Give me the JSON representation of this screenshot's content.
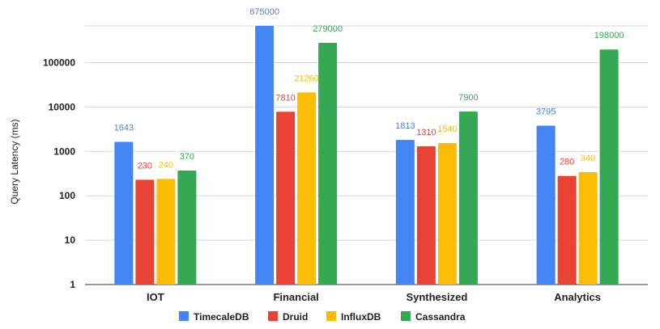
{
  "chart_data": {
    "type": "bar",
    "yscale": "log",
    "ylabel": "Query Latency (ms)",
    "xlabel": "",
    "ylim": [
      1,
      675000
    ],
    "yticks": [
      "1",
      "10",
      "100",
      "1000",
      "10000",
      "100000"
    ],
    "categories": [
      "IOT",
      "Financial",
      "Synthesized",
      "Analytics"
    ],
    "series": [
      {
        "name": "TimecaleDB",
        "color": "#4285F4",
        "values": [
          1643,
          675000,
          1813,
          3795
        ],
        "labels": [
          "1643",
          "675000",
          "1813",
          "3795"
        ]
      },
      {
        "name": "Druid",
        "color": "#EA4335",
        "values": [
          230,
          7810,
          1310,
          280
        ],
        "labels": [
          "230",
          "7810",
          "1310",
          "280"
        ]
      },
      {
        "name": "InfluxDB",
        "color": "#FBBC04",
        "values": [
          240,
          21260,
          1540,
          340
        ],
        "labels": [
          "240",
          "21260",
          "1540",
          "340"
        ]
      },
      {
        "name": "Cassandra",
        "color": "#34A853",
        "values": [
          370,
          279000,
          7900,
          198000
        ],
        "labels": [
          "370",
          "279000",
          "7900",
          "198000"
        ]
      }
    ],
    "grid": true,
    "legend": "bottom"
  }
}
